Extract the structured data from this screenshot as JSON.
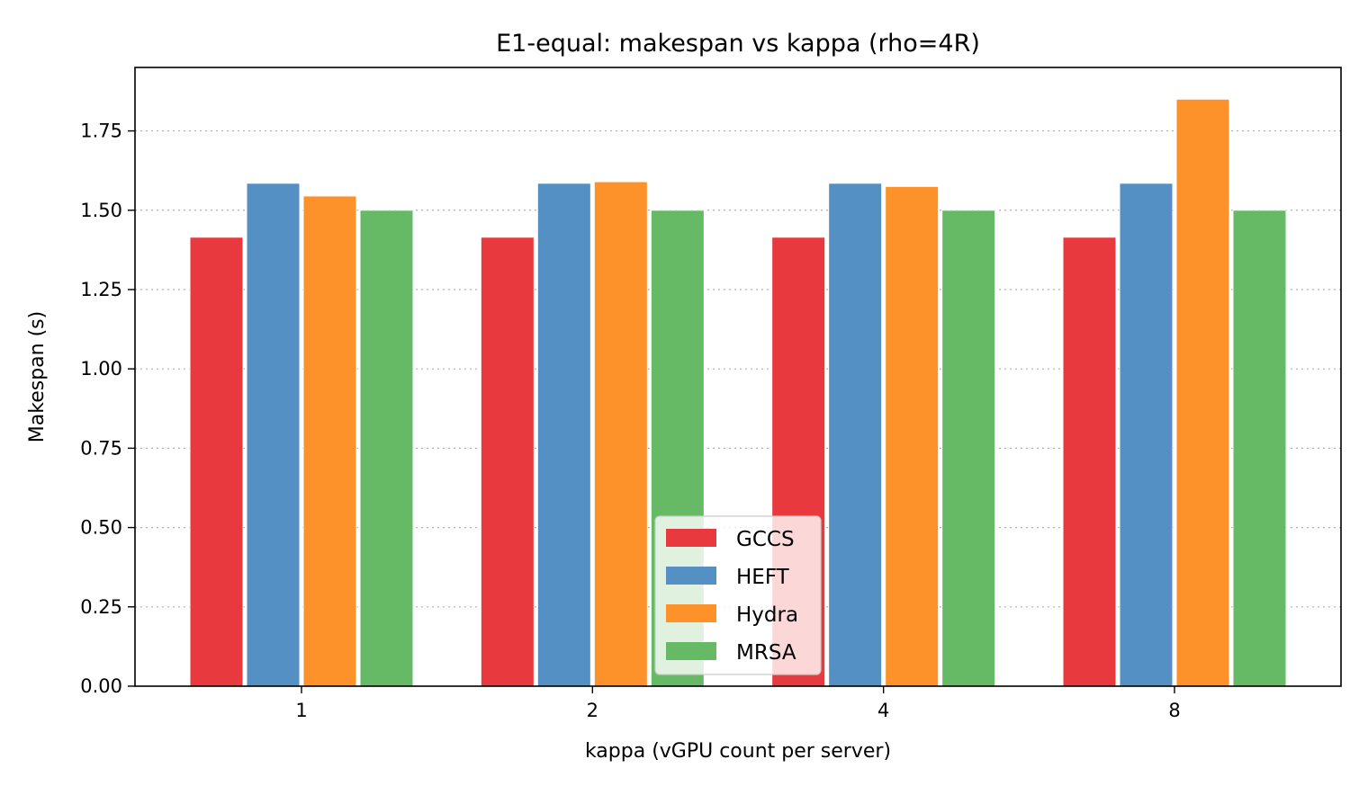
{
  "chart_data": {
    "type": "bar",
    "title": "E1-equal: makespan vs kappa (rho=4R)",
    "xlabel": "kappa (vGPU count per server)",
    "ylabel": "Makespan (s)",
    "categories": [
      "1",
      "2",
      "4",
      "8"
    ],
    "ylim": [
      0,
      1.95
    ],
    "yticks": [
      "0.00",
      "0.25",
      "0.50",
      "0.75",
      "1.00",
      "1.25",
      "1.50",
      "1.75"
    ],
    "grid": "y dotted",
    "legend_position": "bottom-center",
    "series": [
      {
        "name": "GCCS",
        "color": "#e8393e",
        "values": [
          1.415,
          1.415,
          1.415,
          1.415
        ]
      },
      {
        "name": "HEFT",
        "color": "#5490c3",
        "values": [
          1.585,
          1.585,
          1.585,
          1.585
        ]
      },
      {
        "name": "Hydra",
        "color": "#fd922a",
        "values": [
          1.545,
          1.59,
          1.575,
          1.85
        ]
      },
      {
        "name": "MRSA",
        "color": "#66b965",
        "values": [
          1.5,
          1.5,
          1.5,
          1.5
        ]
      }
    ]
  }
}
